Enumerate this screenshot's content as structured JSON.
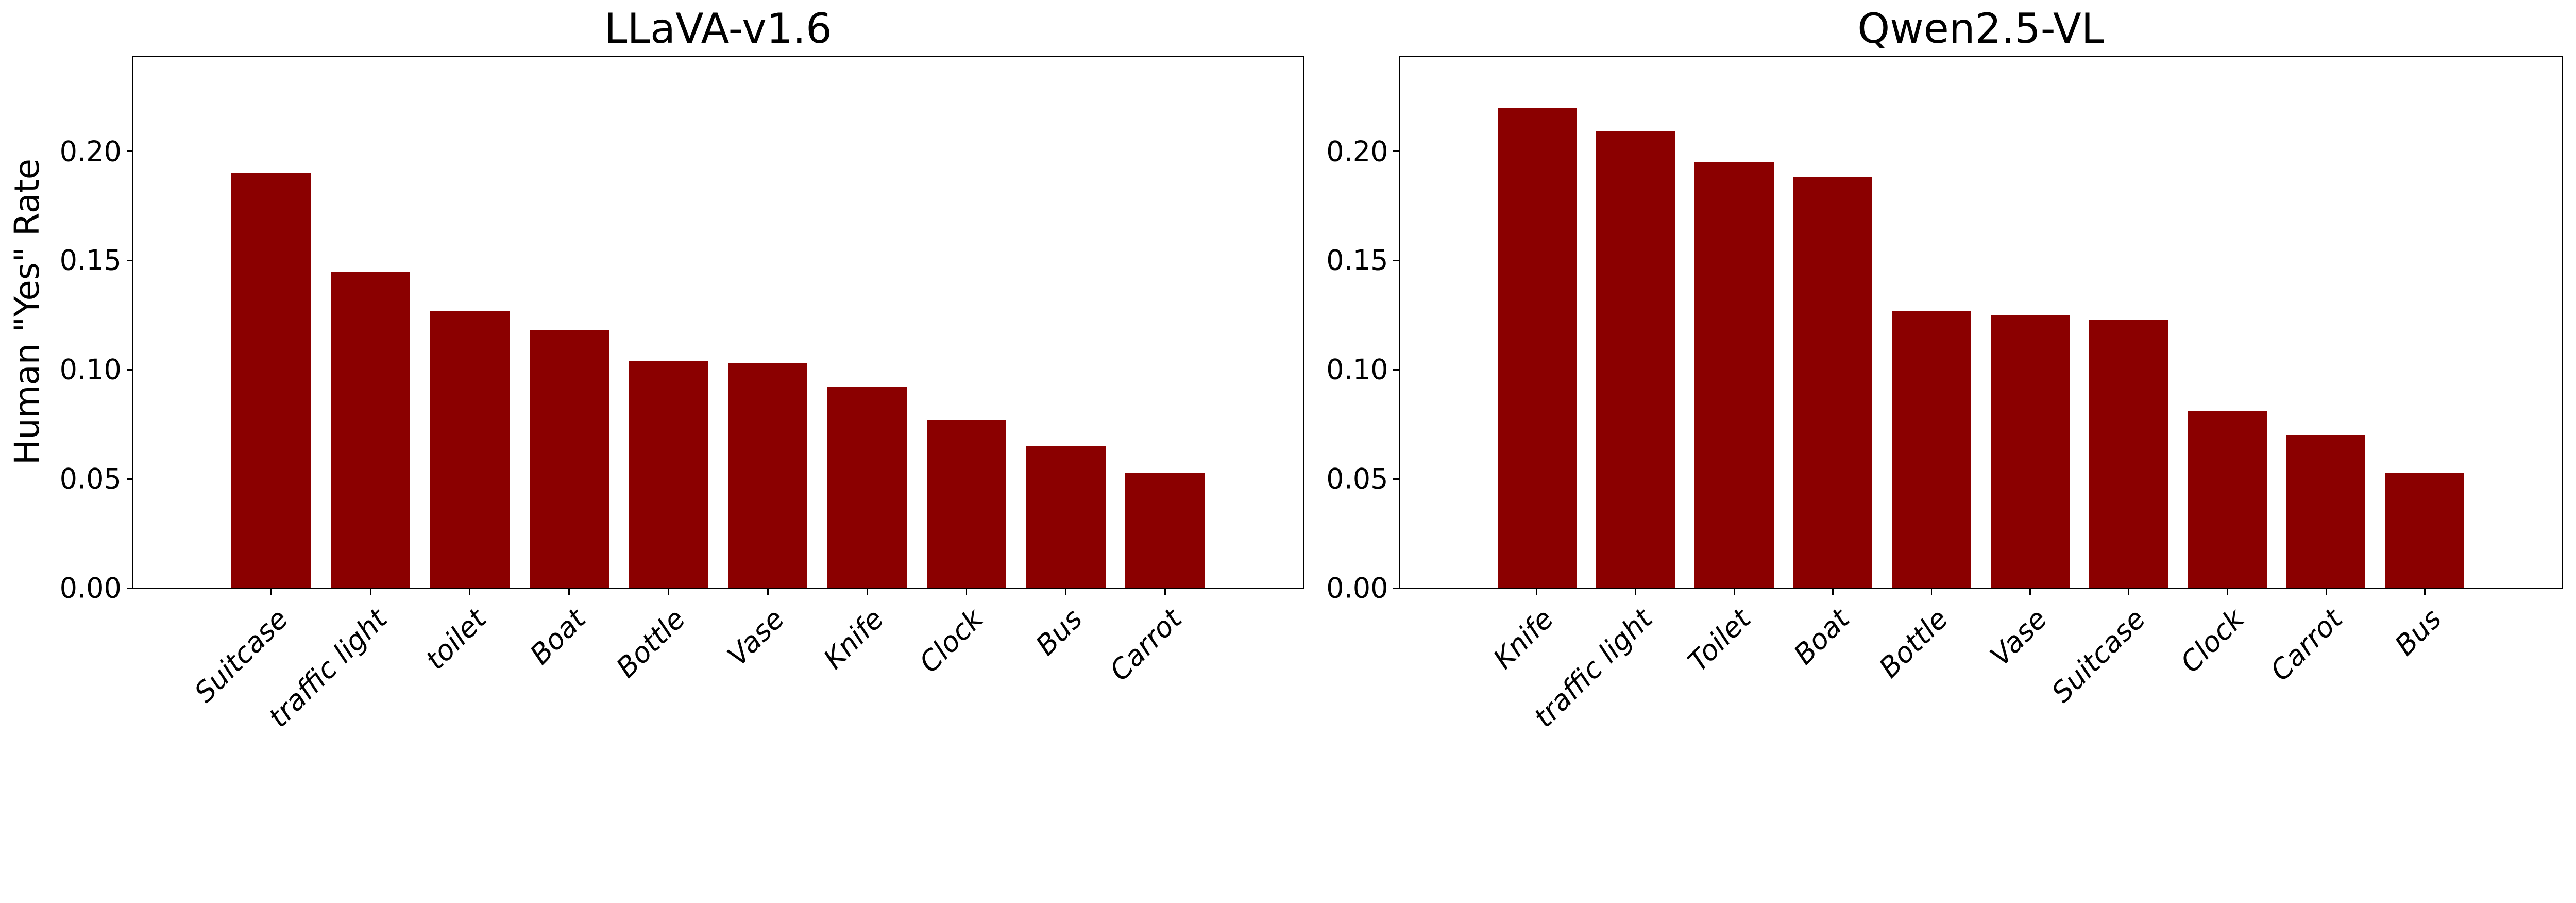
{
  "figure": {
    "background": "#ffffff",
    "bar_color": "#8b0000",
    "axis_color": "#000000",
    "ylabel": "Human \"Yes\" Rate",
    "ytick_labels": [
      "0.00",
      "0.05",
      "0.10",
      "0.15",
      "0.20"
    ],
    "ytick_values": [
      0.0,
      0.05,
      0.1,
      0.15,
      0.2
    ]
  },
  "chart_data": [
    {
      "type": "bar",
      "title": "LLaVA-v1.6",
      "ylabel": "Human \"Yes\" Rate",
      "categories": [
        "Suitcase",
        "traffic light",
        "toilet",
        "Boat",
        "Bottle",
        "Vase",
        "Knife",
        "Clock",
        "Bus",
        "Carrot"
      ],
      "values": [
        0.19,
        0.145,
        0.127,
        0.118,
        0.104,
        0.103,
        0.092,
        0.077,
        0.065,
        0.053
      ],
      "xlabel": "",
      "yticks": [
        0.0,
        0.05,
        0.1,
        0.15,
        0.2
      ],
      "ylim": [
        0,
        0.243
      ],
      "bar_color": "#8b0000",
      "grid": false,
      "legend": false,
      "xtick_rotation": 45,
      "xtick_style": "italic"
    },
    {
      "type": "bar",
      "title": "Qwen2.5-VL",
      "ylabel": "",
      "categories": [
        "Knife",
        "traffic light",
        "Toilet",
        "Boat",
        "Bottle",
        "Vase",
        "Suitcase",
        "Clock",
        "Carrot",
        "Bus"
      ],
      "values": [
        0.22,
        0.209,
        0.195,
        0.188,
        0.127,
        0.125,
        0.123,
        0.081,
        0.07,
        0.053
      ],
      "xlabel": "",
      "yticks": [
        0.0,
        0.05,
        0.1,
        0.15,
        0.2
      ],
      "ylim": [
        0,
        0.243
      ],
      "bar_color": "#8b0000",
      "grid": false,
      "legend": false,
      "xtick_rotation": 45,
      "xtick_style": "italic"
    }
  ]
}
